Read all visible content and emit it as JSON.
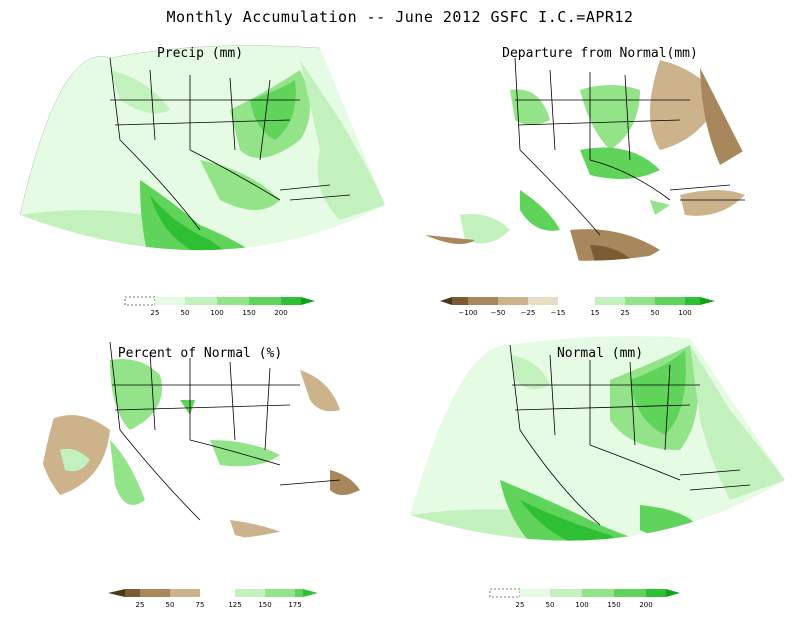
{
  "title": "Monthly Accumulation -- June 2012 GSFC I.C.=APR12",
  "colors": {
    "very_light_green": "#e6fbe4",
    "light_green": "#c3f1bd",
    "mid_green": "#93e389",
    "green": "#5fd35a",
    "dark_green": "#2fbf35",
    "darkest_green": "#0fa21a",
    "light_brown": "#ccb38c",
    "brown": "#a8875c",
    "dark_brown": "#7a5c34"
  },
  "panels": [
    {
      "id": "precip",
      "title": "Precip (mm)",
      "legend": {
        "labels": [
          "25",
          "50",
          "100",
          "150",
          "200"
        ],
        "has_missing_box": true
      }
    },
    {
      "id": "departure",
      "title": "Departure from Normal(mm)",
      "legend": {
        "labels": [
          "−100",
          "−50",
          "−25",
          "−15",
          "15",
          "25",
          "50",
          "100"
        ],
        "has_missing_box": false
      }
    },
    {
      "id": "percent",
      "title": "Percent of Normal (%)",
      "legend": {
        "labels": [
          "25",
          "50",
          "75",
          "125",
          "150",
          "175"
        ],
        "has_missing_box": false
      }
    },
    {
      "id": "normal",
      "title": "Normal (mm)",
      "legend": {
        "labels": [
          "25",
          "50",
          "100",
          "150",
          "200"
        ],
        "has_missing_box": true
      }
    }
  ]
}
